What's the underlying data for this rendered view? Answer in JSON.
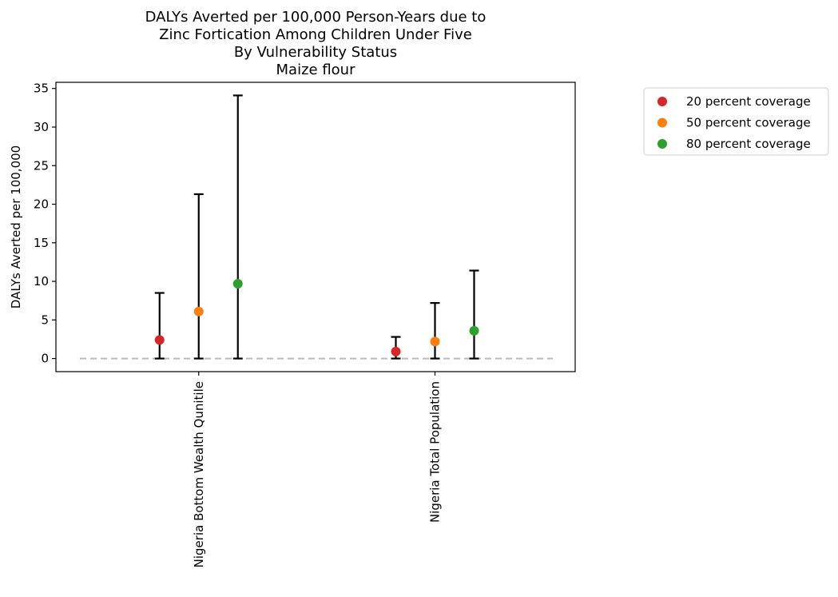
{
  "chart_data": {
    "type": "scatter",
    "title_lines": [
      "DALYs Averted per 100,000 Person-Years due to",
      "Zinc Fortication Among Children Under Five",
      "By Vulnerability Status",
      "Maize flour"
    ],
    "xlabel": "",
    "ylabel": "DALYs Averted per 100,000",
    "categories": [
      "Nigeria Bottom Wealth Qunitile",
      "Nigeria Total Population"
    ],
    "ylim": [
      -1.7,
      35.8
    ],
    "yticks": [
      0,
      5,
      10,
      15,
      20,
      25,
      30,
      35
    ],
    "series": [
      {
        "name": "20 percent coverage",
        "color": "#d62728",
        "values": [
          2.4,
          0.9
        ],
        "lower": [
          0.0,
          0.0
        ],
        "upper": [
          8.5,
          2.8
        ]
      },
      {
        "name": "50 percent coverage",
        "color": "#ff7f0e",
        "values": [
          6.1,
          2.2
        ],
        "lower": [
          0.0,
          0.0
        ],
        "upper": [
          21.3,
          7.2
        ]
      },
      {
        "name": "80 percent coverage",
        "color": "#2ca02c",
        "values": [
          9.7,
          3.6
        ],
        "lower": [
          0.0,
          0.0
        ],
        "upper": [
          34.1,
          11.4
        ]
      }
    ],
    "reference_line": {
      "y": 0,
      "style": "dashed",
      "color": "#bbbbbb"
    },
    "legend_position": "outside-right-top",
    "grid": false
  }
}
